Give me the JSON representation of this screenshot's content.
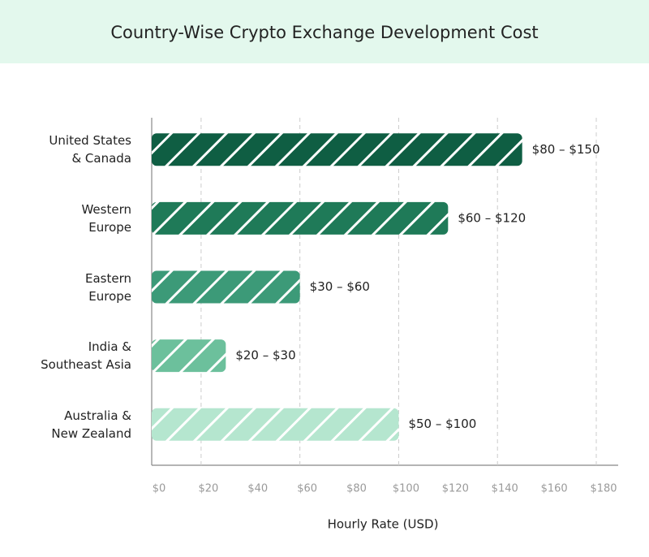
{
  "chart_data": {
    "type": "bar",
    "orientation": "horizontal",
    "title": "Country-Wise Crypto Exchange Development Cost",
    "x_label": "Hourly Rate (USD)",
    "categories": [
      "United States\n& Canada",
      "Western\nEurope",
      "Eastern\nEurope",
      "India &\nSoutheast Asia",
      "Australia &\nNew Zealand"
    ],
    "values": [
      150,
      120,
      60,
      30,
      100
    ],
    "value_labels": [
      "$80 – $150",
      "$60 – $120",
      "$30 – $60",
      "$20 – $30",
      "$50 – $100"
    ],
    "colors": [
      "#0f5e43",
      "#1f7a58",
      "#3c9a78",
      "#6cc09c",
      "#b5e6cf"
    ],
    "xlim": [
      0,
      180
    ],
    "xticks": [
      {
        "value": 0,
        "label": "$0"
      },
      {
        "value": 20,
        "label": "$20"
      },
      {
        "value": 40,
        "label": "$40"
      },
      {
        "value": 60,
        "label": "$60"
      },
      {
        "value": 80,
        "label": "$80"
      },
      {
        "value": 100,
        "label": "$100"
      },
      {
        "value": 120,
        "label": "$120"
      },
      {
        "value": 140,
        "label": "$140"
      },
      {
        "value": 160,
        "label": "$160"
      },
      {
        "value": 180,
        "label": "$180"
      }
    ],
    "grid": true
  }
}
